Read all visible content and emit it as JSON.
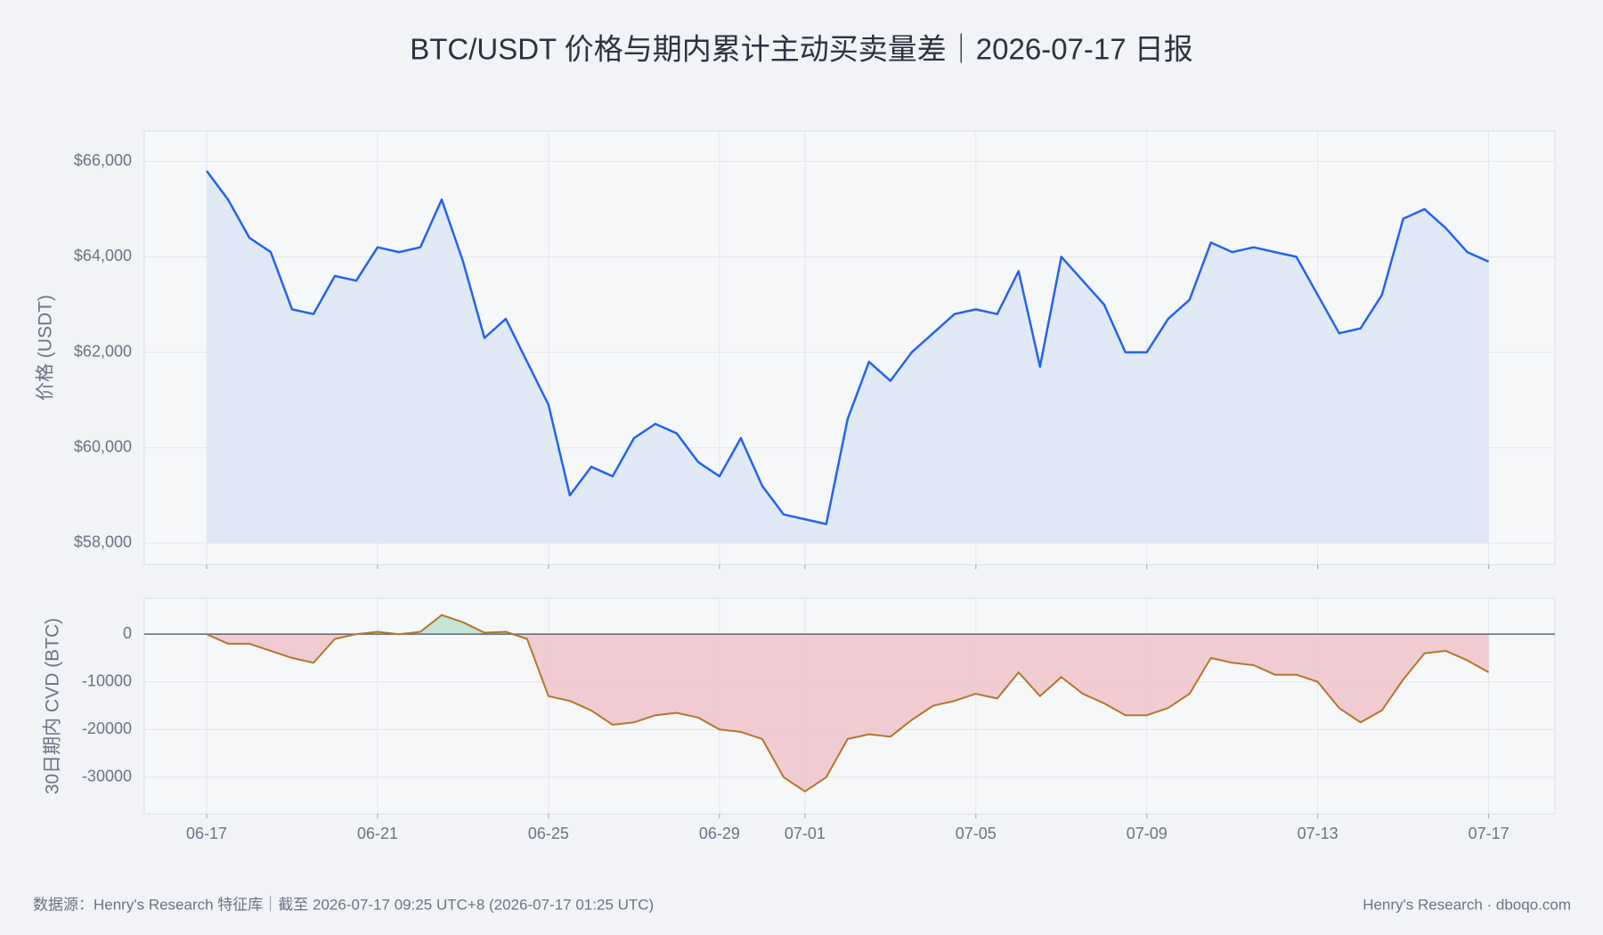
{
  "title": "BTC/USDT 价格与期内累计主动买卖量差｜2026-07-17 日报",
  "source": "数据源：Henry's Research 特征库｜截至 2026-07-17 09:25 UTC+8 (2026-07-17 01:25 UTC)",
  "credit": "Henry's Research · dboqo.com",
  "chart_data": [
    {
      "type": "line",
      "ylabel": "价格 (USDT)",
      "color": "#2563eb",
      "fill_color": "#dde6f7",
      "x": [
        0,
        0.5,
        1,
        1.5,
        2,
        2.5,
        3,
        3.5,
        4,
        4.5,
        5,
        5.5,
        6,
        6.5,
        7,
        7.5,
        8,
        8.5,
        9,
        9.5,
        10,
        10.5,
        11,
        11.5,
        12,
        12.5,
        13,
        13.5,
        14,
        14.5,
        15,
        15.5,
        16,
        16.5,
        17,
        17.5,
        18,
        18.5,
        19,
        19.5,
        20,
        20.5,
        21,
        21.5,
        22,
        22.5,
        23,
        23.5,
        24,
        24.5,
        25,
        25.5,
        26,
        26.5,
        27,
        27.5,
        28,
        28.5,
        29,
        29.5,
        30
      ],
      "values": [
        65800,
        65200,
        64400,
        64100,
        62900,
        62800,
        63600,
        63500,
        64200,
        64100,
        64200,
        65200,
        63900,
        62300,
        62700,
        61800,
        60900,
        59000,
        59600,
        59400,
        60200,
        60500,
        60300,
        59700,
        59400,
        60200,
        59200,
        58600,
        58500,
        58400,
        60600,
        61800,
        61400,
        62000,
        62400,
        62800,
        62900,
        62800,
        63700,
        61700,
        64000,
        63500,
        63000,
        62000,
        62000,
        62700,
        63100,
        64300,
        64100,
        64200,
        64100,
        64000,
        63200,
        62400,
        62500,
        63200,
        64800,
        65000,
        64600,
        64100,
        63900
      ],
      "xlim": [
        -1.46,
        31.55
      ],
      "ylim": [
        57550,
        66640
      ],
      "yticks": [
        {
          "value": 58000,
          "label": "$58,000"
        },
        {
          "value": 60000,
          "label": "$60,000"
        },
        {
          "value": 62000,
          "label": "$62,000"
        },
        {
          "value": 64000,
          "label": "$64,000"
        },
        {
          "value": 66000,
          "label": "$66,000"
        }
      ],
      "grid": true
    },
    {
      "type": "line",
      "ylabel": "30日期内 CVD (BTC)",
      "color": "#b5762a",
      "positive_color": "#bfe2d3",
      "negative_color": "#efc7cd",
      "x": [
        0,
        0.5,
        1,
        1.5,
        2,
        2.5,
        3,
        3.5,
        4,
        4.5,
        5,
        5.5,
        6,
        6.5,
        7,
        7.5,
        8,
        8.5,
        9,
        9.5,
        10,
        10.5,
        11,
        11.5,
        12,
        12.5,
        13,
        13.5,
        14,
        14.5,
        15,
        15.5,
        16,
        16.5,
        17,
        17.5,
        18,
        18.5,
        19,
        19.5,
        20,
        20.5,
        21,
        21.5,
        22,
        22.5,
        23,
        23.5,
        24,
        24.5,
        25,
        25.5,
        26,
        26.5,
        27,
        27.5,
        28,
        28.5,
        29,
        29.5,
        30
      ],
      "values": [
        0,
        -2000,
        -2000,
        -3500,
        -5000,
        -6000,
        -1000,
        0,
        500,
        0,
        500,
        4000,
        2500,
        300,
        500,
        -1000,
        -13000,
        -14000,
        -16000,
        -19000,
        -18500,
        -17000,
        -16500,
        -17500,
        -20000,
        -20500,
        -22000,
        -30000,
        -33000,
        -30000,
        -22000,
        -21000,
        -21500,
        -18000,
        -15000,
        -14000,
        -12500,
        -13500,
        -8000,
        -13000,
        -9000,
        -12500,
        -14500,
        -17000,
        -17000,
        -15500,
        -12500,
        -5000,
        -6000,
        -6500,
        -8500,
        -8500,
        -10000,
        -15500,
        -18500,
        -16000,
        -9500,
        -4000,
        -3500,
        -5500,
        -8000
      ],
      "xlim": [
        -1.46,
        31.55
      ],
      "ylim": [
        -37700,
        7500
      ],
      "yticks": [
        -30000,
        -20000,
        -10000,
        0
      ],
      "xticks": [
        {
          "value": 0,
          "label": "06-17"
        },
        {
          "value": 4,
          "label": "06-21"
        },
        {
          "value": 8,
          "label": "06-25"
        },
        {
          "value": 12,
          "label": "06-29"
        },
        {
          "value": 14,
          "label": "07-01"
        },
        {
          "value": 18,
          "label": "07-05"
        },
        {
          "value": 22,
          "label": "07-09"
        },
        {
          "value": 26,
          "label": "07-13"
        },
        {
          "value": 30,
          "label": "07-17"
        }
      ],
      "grid": true
    }
  ]
}
